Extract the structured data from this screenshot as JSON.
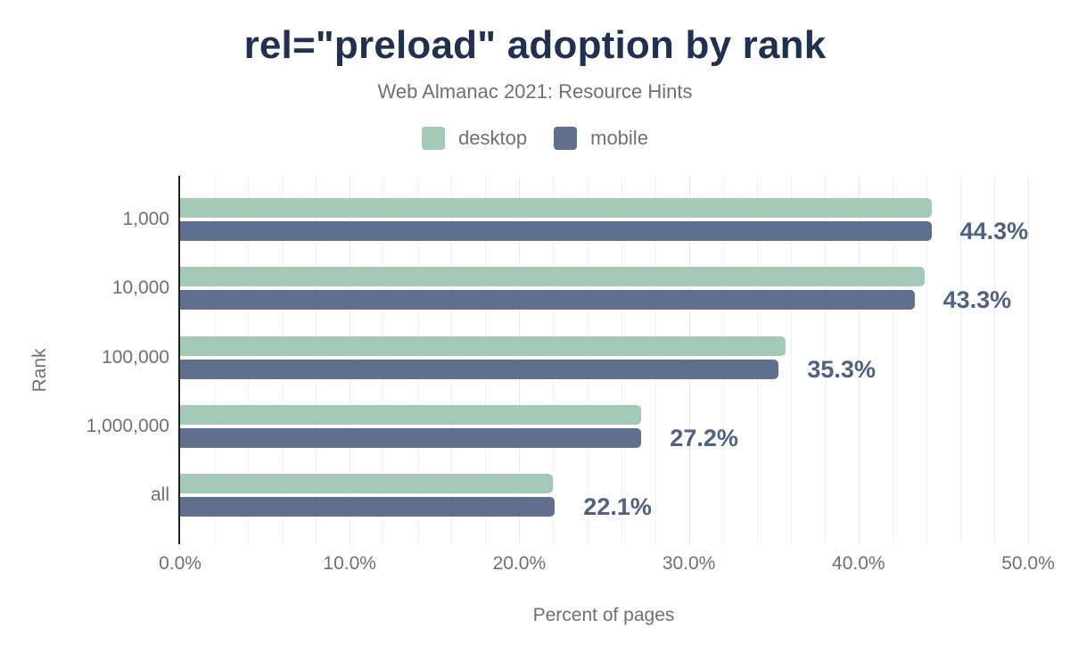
{
  "header": {
    "title": "rel=\"preload\" adoption by rank",
    "subtitle": "Web Almanac 2021: Resource Hints"
  },
  "legend": {
    "items": [
      {
        "label": "desktop",
        "color": "#a4c9b6"
      },
      {
        "label": "mobile",
        "color": "#5e708e"
      }
    ]
  },
  "colors": {
    "title": "#1f3051",
    "muted_text": "#717171",
    "value_label": "#4e6186",
    "axis_line": "#212121",
    "gridline_minor": "#f0f0f3",
    "gridline_major": "#e8e8ed"
  },
  "chart_data": {
    "type": "bar",
    "orientation": "horizontal",
    "title": "rel=\"preload\" adoption by rank",
    "subtitle": "Web Almanac 2021: Resource Hints",
    "categories": [
      "1,000",
      "10,000",
      "100,000",
      "1,000,000",
      "all"
    ],
    "series": [
      {
        "name": "desktop",
        "color": "#a4c9b6",
        "values": [
          44.3,
          43.9,
          35.7,
          27.2,
          22.0
        ]
      },
      {
        "name": "mobile",
        "color": "#5e708e",
        "values": [
          44.3,
          43.3,
          35.3,
          27.2,
          22.1
        ]
      }
    ],
    "data_labels": [
      "44.3%",
      "43.3%",
      "35.3%",
      "27.2%",
      "22.1%"
    ],
    "data_labels_for_series": "mobile",
    "xlabel": "Percent of pages",
    "ylabel": "Rank",
    "xlim": [
      0,
      50
    ],
    "x_ticks": [
      {
        "value": 0,
        "label": "0.0%"
      },
      {
        "value": 10,
        "label": "10.0%"
      },
      {
        "value": 20,
        "label": "20.0%"
      },
      {
        "value": 30,
        "label": "30.0%"
      },
      {
        "value": 40,
        "label": "40.0%"
      },
      {
        "value": 50,
        "label": "50.0%"
      }
    ],
    "grid": {
      "on": true,
      "minor_step": 2,
      "major_step": 10
    },
    "legend_position": "top"
  }
}
